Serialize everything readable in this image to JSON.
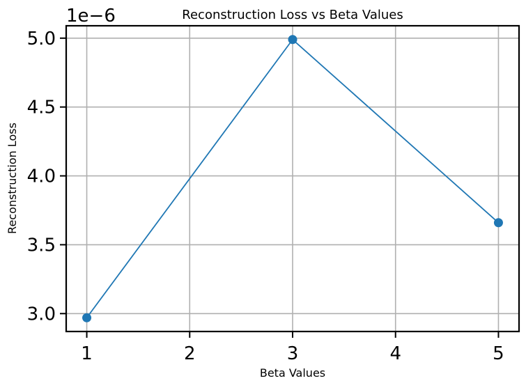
{
  "chart_data": {
    "type": "line",
    "title": "Reconstruction Loss vs Beta Values",
    "xlabel": "Beta Values",
    "ylabel": "Reconstruction Loss",
    "y_offset_label": "1e−6",
    "x": [
      1,
      3,
      5
    ],
    "series": [
      {
        "values": [
          2.97e-06,
          4.99e-06,
          3.66e-06
        ]
      }
    ],
    "xlim": [
      0.8,
      5.2
    ],
    "ylim": [
      2.87e-06,
      5.09e-06
    ],
    "x_ticks": [
      1,
      2,
      3,
      4,
      5
    ],
    "x_tick_labels": [
      "1",
      "2",
      "3",
      "4",
      "5"
    ],
    "y_ticks": [
      3e-06,
      3.5e-06,
      4e-06,
      4.5e-06,
      5e-06
    ],
    "y_tick_labels": [
      "3.0",
      "3.5",
      "4.0",
      "4.5",
      "5.0"
    ],
    "grid": true,
    "line_color": "#1f77b4",
    "marker": "circle"
  }
}
